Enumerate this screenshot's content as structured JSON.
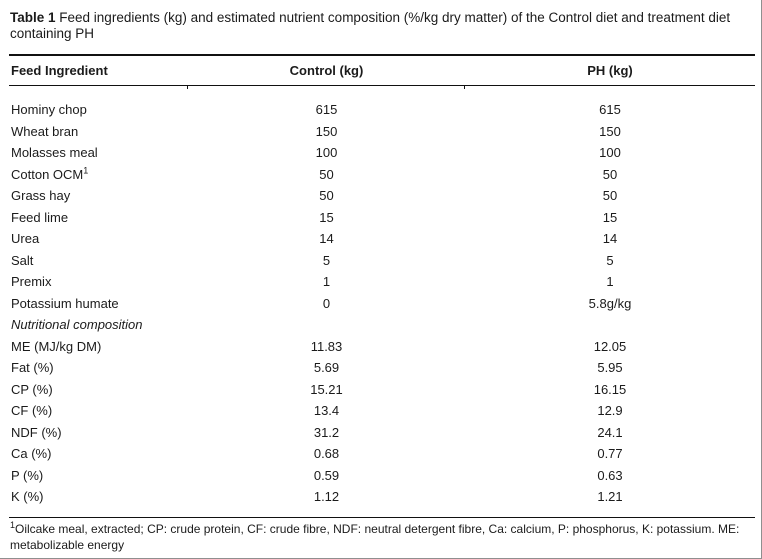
{
  "title": {
    "label": "Table 1",
    "text": " Feed ingredients (kg) and estimated nutrient composition (%/kg dry matter) of the Control diet and treatment diet containing PH"
  },
  "table": {
    "columns": [
      "Feed Ingredient",
      "Control (kg)",
      "PH (kg)"
    ],
    "rows": [
      {
        "name": "Hominy chop",
        "control": "615",
        "ph": "615"
      },
      {
        "name": "Wheat bran",
        "control": "150",
        "ph": "150"
      },
      {
        "name": "Molasses meal",
        "control": "100",
        "ph": "100"
      },
      {
        "name": "Cotton OCM",
        "sup": "1",
        "control": "50",
        "ph": "50"
      },
      {
        "name": "Grass hay",
        "control": "50",
        "ph": "50"
      },
      {
        "name": "Feed lime",
        "control": "15",
        "ph": "15"
      },
      {
        "name": "Urea",
        "control": "14",
        "ph": "14"
      },
      {
        "name": "Salt",
        "control": "5",
        "ph": "5"
      },
      {
        "name": "Premix",
        "control": "1",
        "ph": "1"
      },
      {
        "name": "Potassium humate",
        "control": "0",
        "ph": "5.8g/kg"
      },
      {
        "name": "Nutritional composition",
        "section": true
      },
      {
        "name": "ME (MJ/kg DM)",
        "control": "11.83",
        "ph": "12.05"
      },
      {
        "name": "Fat (%)",
        "control": "5.69",
        "ph": "5.95"
      },
      {
        "name": "CP (%)",
        "control": "15.21",
        "ph": "16.15"
      },
      {
        "name": "CF (%)",
        "control": "13.4",
        "ph": "12.9"
      },
      {
        "name": "NDF (%)",
        "control": "31.2",
        "ph": "24.1"
      },
      {
        "name": "Ca (%)",
        "control": "0.68",
        "ph": "0.77"
      },
      {
        "name": "P (%)",
        "control": "0.59",
        "ph": "0.63"
      },
      {
        "name": "K (%)",
        "control": "1.12",
        "ph": "1.21"
      }
    ]
  },
  "footnote": {
    "sup": "1",
    "text": "Oilcake meal, extracted; CP: crude protein, CF: crude fibre, NDF: neutral detergent fibre, Ca: calcium, P: phosphorus, K: potassium. ME: metabolizable energy"
  }
}
